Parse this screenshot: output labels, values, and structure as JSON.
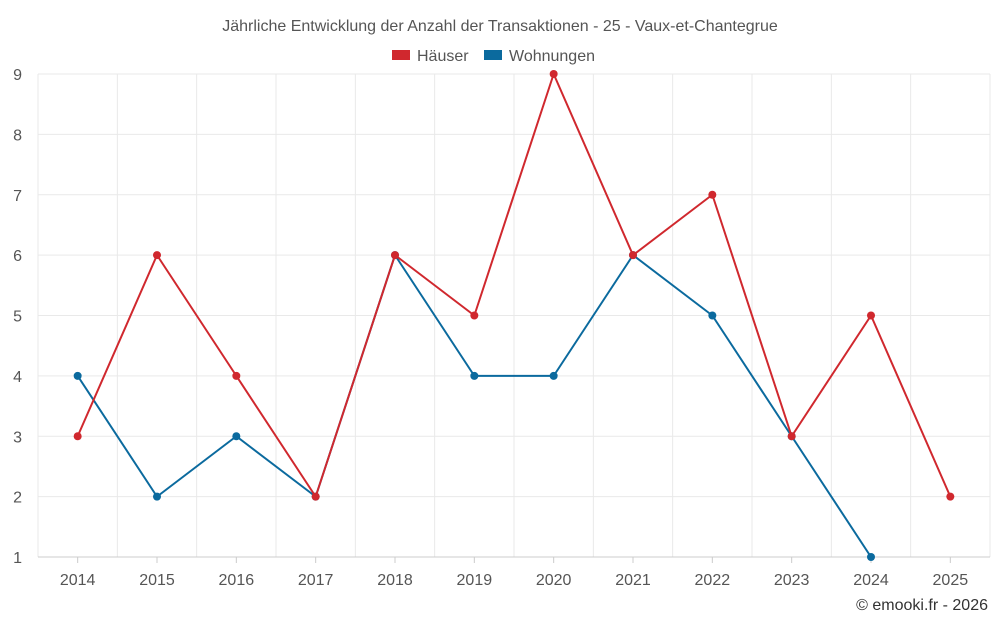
{
  "chart_data": {
    "type": "line",
    "title": "Jährliche Entwicklung der Anzahl der Transaktionen - 25 - Vaux-et-Chantegrue",
    "categories": [
      "2014",
      "2015",
      "2016",
      "2017",
      "2018",
      "2019",
      "2020",
      "2021",
      "2022",
      "2023",
      "2024",
      "2025"
    ],
    "series": [
      {
        "name": "Häuser",
        "color": "#d0282e",
        "values": [
          3,
          6,
          4,
          2,
          6,
          5,
          9,
          6,
          7,
          3,
          5,
          2
        ]
      },
      {
        "name": "Wohnungen",
        "color": "#0b6a9e",
        "values": [
          4,
          2,
          3,
          2,
          6,
          4,
          4,
          6,
          5,
          3,
          1,
          null
        ]
      }
    ],
    "ylim": [
      1,
      9
    ],
    "yticks": [
      "1",
      "2",
      "3",
      "4",
      "5",
      "6",
      "7",
      "8",
      "9"
    ],
    "grid": true,
    "legend_position": "top-center",
    "xlabel": "",
    "ylabel": ""
  },
  "credit": "© emooki.fr - 2026"
}
